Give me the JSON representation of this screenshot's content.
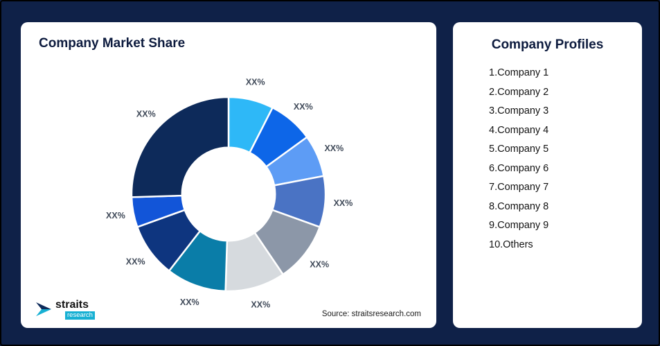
{
  "page": {
    "background_color": "#0f2148"
  },
  "market_share_card": {
    "title": "Company Market Share",
    "source": "Source: straitsresearch.com",
    "logo": {
      "name": "straits",
      "sub": "research"
    }
  },
  "company_profiles_card": {
    "title": "Company Profiles",
    "items": [
      "1.Company 1",
      "2.Company 2",
      "3.Company 3",
      "4.Company 4",
      "5.Company 5",
      "6.Company 6",
      "7.Company 7",
      "8.Company 8",
      "9.Company 9",
      "10.Others"
    ]
  },
  "chart_data": {
    "type": "pie",
    "subtype": "donut",
    "title": "Company Market Share",
    "labels": [
      "XX%",
      "XX%",
      "XX%",
      "XX%",
      "XX%",
      "XX%",
      "XX%",
      "XX%",
      "XX%",
      "XX%"
    ],
    "values": [
      7.5,
      7.5,
      7,
      8.5,
      10,
      10,
      10,
      9,
      5,
      25.5
    ],
    "values_note": "estimated from arc sizes; actual values masked as XX% in image",
    "colors": [
      "#2eb8f7",
      "#0d66e8",
      "#5d9cf5",
      "#4a73c4",
      "#8c97a8",
      "#d6dade",
      "#0a7da8",
      "#0e357f",
      "#1255d8",
      "#0d2a5a"
    ],
    "start_angle_deg": 0,
    "direction": "clockwise",
    "inner_radius_ratio": 0.48,
    "legend": "none",
    "source": "Source: straitsresearch.com"
  }
}
